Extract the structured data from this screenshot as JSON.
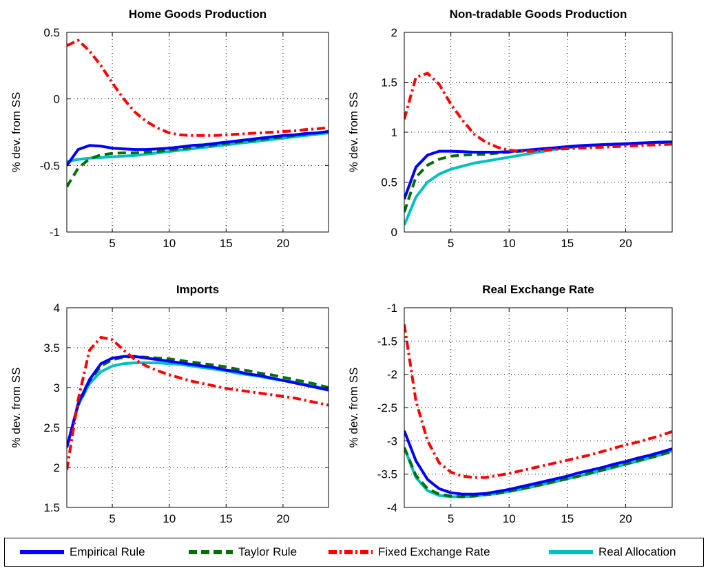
{
  "legend": [
    {
      "label": "Empirical Rule",
      "color": "#0000ff",
      "dash": "solid"
    },
    {
      "label": "Taylor Rule",
      "color": "#007000",
      "dash": "dashed"
    },
    {
      "label": "Fixed Exchange Rate",
      "color": "#ff0000",
      "dash": "dash-dot"
    },
    {
      "label": "Real Allocation",
      "color": "#00c0c0",
      "dash": "solid"
    }
  ],
  "chart_data": [
    {
      "type": "line",
      "title": "Home Goods Production",
      "ylabel": "% dev. from SS",
      "xlabel": "",
      "xlim": [
        1,
        24
      ],
      "ylim": [
        -1,
        0.5
      ],
      "xticks": [
        5,
        10,
        15,
        20
      ],
      "yticks": [
        -1,
        -0.5,
        0,
        0.5
      ],
      "ytick_labels": [
        "-1",
        "-0.5",
        "0",
        "0.5"
      ],
      "grid": true,
      "x": [
        1,
        2,
        3,
        4,
        5,
        6,
        7,
        8,
        9,
        10,
        11,
        12,
        13,
        14,
        15,
        16,
        17,
        18,
        19,
        20,
        21,
        22,
        23,
        24
      ],
      "series": [
        {
          "name": "Empirical Rule",
          "values": [
            -0.5,
            -0.38,
            -0.35,
            -0.355,
            -0.37,
            -0.375,
            -0.38,
            -0.38,
            -0.375,
            -0.37,
            -0.36,
            -0.35,
            -0.345,
            -0.335,
            -0.325,
            -0.315,
            -0.305,
            -0.295,
            -0.285,
            -0.275,
            -0.27,
            -0.26,
            -0.255,
            -0.245
          ]
        },
        {
          "name": "Taylor Rule",
          "values": [
            -0.66,
            -0.52,
            -0.45,
            -0.42,
            -0.41,
            -0.405,
            -0.405,
            -0.4,
            -0.395,
            -0.385,
            -0.375,
            -0.365,
            -0.355,
            -0.345,
            -0.335,
            -0.325,
            -0.315,
            -0.305,
            -0.295,
            -0.285,
            -0.275,
            -0.265,
            -0.255,
            -0.245
          ]
        },
        {
          "name": "Fixed Exchange Rate",
          "values": [
            0.4,
            0.44,
            0.36,
            0.25,
            0.12,
            0.0,
            -0.1,
            -0.17,
            -0.22,
            -0.255,
            -0.27,
            -0.275,
            -0.275,
            -0.275,
            -0.27,
            -0.265,
            -0.26,
            -0.255,
            -0.25,
            -0.245,
            -0.24,
            -0.23,
            -0.225,
            -0.215
          ]
        },
        {
          "name": "Real Allocation",
          "values": [
            -0.47,
            -0.455,
            -0.445,
            -0.44,
            -0.435,
            -0.43,
            -0.425,
            -0.415,
            -0.405,
            -0.395,
            -0.385,
            -0.375,
            -0.365,
            -0.355,
            -0.345,
            -0.335,
            -0.325,
            -0.315,
            -0.305,
            -0.295,
            -0.285,
            -0.275,
            -0.265,
            -0.255
          ]
        }
      ]
    },
    {
      "type": "line",
      "title": "Non-tradable Goods Production",
      "ylabel": "% dev. from SS",
      "xlabel": "",
      "xlim": [
        1,
        24
      ],
      "ylim": [
        0,
        2
      ],
      "xticks": [
        5,
        10,
        15,
        20
      ],
      "yticks": [
        0,
        0.5,
        1,
        1.5,
        2
      ],
      "ytick_labels": [
        "0",
        "0.5",
        "1",
        "1.5",
        "2"
      ],
      "grid": true,
      "x": [
        1,
        2,
        3,
        4,
        5,
        6,
        7,
        8,
        9,
        10,
        11,
        12,
        13,
        14,
        15,
        16,
        17,
        18,
        19,
        20,
        21,
        22,
        23,
        24
      ],
      "series": [
        {
          "name": "Empirical Rule",
          "values": [
            0.33,
            0.65,
            0.77,
            0.81,
            0.81,
            0.805,
            0.8,
            0.8,
            0.8,
            0.805,
            0.815,
            0.825,
            0.835,
            0.845,
            0.855,
            0.865,
            0.87,
            0.875,
            0.88,
            0.885,
            0.89,
            0.895,
            0.9,
            0.9
          ]
        },
        {
          "name": "Taylor Rule",
          "values": [
            0.2,
            0.55,
            0.67,
            0.73,
            0.76,
            0.77,
            0.775,
            0.78,
            0.79,
            0.8,
            0.81,
            0.82,
            0.83,
            0.84,
            0.85,
            0.86,
            0.865,
            0.87,
            0.875,
            0.88,
            0.885,
            0.89,
            0.895,
            0.9
          ]
        },
        {
          "name": "Fixed Exchange Rate",
          "values": [
            1.13,
            1.55,
            1.59,
            1.48,
            1.28,
            1.12,
            0.98,
            0.9,
            0.85,
            0.82,
            0.81,
            0.81,
            0.82,
            0.83,
            0.835,
            0.84,
            0.845,
            0.85,
            0.855,
            0.86,
            0.865,
            0.87,
            0.875,
            0.88
          ]
        },
        {
          "name": "Real Allocation",
          "values": [
            0.07,
            0.35,
            0.5,
            0.58,
            0.63,
            0.66,
            0.69,
            0.71,
            0.73,
            0.75,
            0.77,
            0.79,
            0.81,
            0.83,
            0.845,
            0.855,
            0.865,
            0.875,
            0.88,
            0.885,
            0.89,
            0.895,
            0.9,
            0.905
          ]
        }
      ]
    },
    {
      "type": "line",
      "title": "Imports",
      "ylabel": "% dev. from SS",
      "xlabel": "",
      "xlim": [
        1,
        24
      ],
      "ylim": [
        1.5,
        4
      ],
      "xticks": [
        5,
        10,
        15,
        20
      ],
      "yticks": [
        1.5,
        2,
        2.5,
        3,
        3.5,
        4
      ],
      "ytick_labels": [
        "1.5",
        "2",
        "2.5",
        "3",
        "3.5",
        "4"
      ],
      "grid": true,
      "x": [
        1,
        2,
        3,
        4,
        5,
        6,
        7,
        8,
        9,
        10,
        11,
        12,
        13,
        14,
        15,
        16,
        17,
        18,
        19,
        20,
        21,
        22,
        23,
        24
      ],
      "series": [
        {
          "name": "Empirical Rule",
          "values": [
            2.25,
            2.8,
            3.1,
            3.3,
            3.37,
            3.39,
            3.39,
            3.37,
            3.35,
            3.33,
            3.31,
            3.29,
            3.27,
            3.25,
            3.22,
            3.2,
            3.17,
            3.15,
            3.12,
            3.09,
            3.06,
            3.03,
            3.0,
            2.97
          ]
        },
        {
          "name": "Taylor Rule",
          "values": [
            2.25,
            2.78,
            3.08,
            3.27,
            3.35,
            3.38,
            3.39,
            3.38,
            3.37,
            3.36,
            3.34,
            3.32,
            3.3,
            3.28,
            3.26,
            3.23,
            3.21,
            3.18,
            3.16,
            3.13,
            3.1,
            3.07,
            3.04,
            3.0
          ]
        },
        {
          "name": "Fixed Exchange Rate",
          "values": [
            1.97,
            2.85,
            3.47,
            3.63,
            3.6,
            3.47,
            3.35,
            3.27,
            3.21,
            3.16,
            3.12,
            3.08,
            3.05,
            3.02,
            2.99,
            2.97,
            2.95,
            2.93,
            2.91,
            2.89,
            2.87,
            2.84,
            2.81,
            2.78
          ]
        },
        {
          "name": "Real Allocation",
          "values": [
            2.25,
            2.78,
            3.05,
            3.2,
            3.27,
            3.3,
            3.31,
            3.31,
            3.31,
            3.3,
            3.29,
            3.27,
            3.25,
            3.23,
            3.21,
            3.18,
            3.16,
            3.14,
            3.11,
            3.09,
            3.07,
            3.04,
            3.01,
            2.98
          ]
        }
      ]
    },
    {
      "type": "line",
      "title": "Real Exchange Rate",
      "ylabel": "% dev. from SS",
      "xlabel": "",
      "xlim": [
        1,
        24
      ],
      "ylim": [
        -4,
        -1
      ],
      "xticks": [
        5,
        10,
        15,
        20
      ],
      "yticks": [
        -4,
        -3.5,
        -3,
        -2.5,
        -2,
        -1.5,
        -1
      ],
      "ytick_labels": [
        "-4",
        "-3.5",
        "-3",
        "-2.5",
        "-2",
        "-1.5",
        "-1"
      ],
      "grid": true,
      "x": [
        1,
        2,
        3,
        4,
        5,
        6,
        7,
        8,
        9,
        10,
        11,
        12,
        13,
        14,
        15,
        16,
        17,
        18,
        19,
        20,
        21,
        22,
        23,
        24
      ],
      "series": [
        {
          "name": "Empirical Rule",
          "values": [
            -2.85,
            -3.3,
            -3.58,
            -3.72,
            -3.78,
            -3.8,
            -3.8,
            -3.79,
            -3.76,
            -3.73,
            -3.69,
            -3.65,
            -3.61,
            -3.57,
            -3.53,
            -3.48,
            -3.44,
            -3.4,
            -3.35,
            -3.31,
            -3.26,
            -3.22,
            -3.17,
            -3.12
          ]
        },
        {
          "name": "Taylor Rule",
          "values": [
            -3.1,
            -3.52,
            -3.72,
            -3.8,
            -3.83,
            -3.84,
            -3.83,
            -3.81,
            -3.79,
            -3.76,
            -3.72,
            -3.69,
            -3.65,
            -3.61,
            -3.57,
            -3.53,
            -3.48,
            -3.44,
            -3.39,
            -3.35,
            -3.3,
            -3.26,
            -3.21,
            -3.16
          ]
        },
        {
          "name": "Fixed Exchange Rate",
          "values": [
            -1.25,
            -2.4,
            -3.0,
            -3.33,
            -3.47,
            -3.53,
            -3.55,
            -3.55,
            -3.52,
            -3.49,
            -3.45,
            -3.41,
            -3.37,
            -3.33,
            -3.29,
            -3.25,
            -3.21,
            -3.16,
            -3.11,
            -3.06,
            -3.02,
            -2.97,
            -2.92,
            -2.86
          ]
        },
        {
          "name": "Real Allocation",
          "values": [
            -3.1,
            -3.55,
            -3.75,
            -3.82,
            -3.84,
            -3.84,
            -3.83,
            -3.81,
            -3.79,
            -3.76,
            -3.73,
            -3.69,
            -3.65,
            -3.61,
            -3.57,
            -3.53,
            -3.49,
            -3.44,
            -3.4,
            -3.35,
            -3.31,
            -3.26,
            -3.21,
            -3.15
          ]
        }
      ]
    }
  ]
}
